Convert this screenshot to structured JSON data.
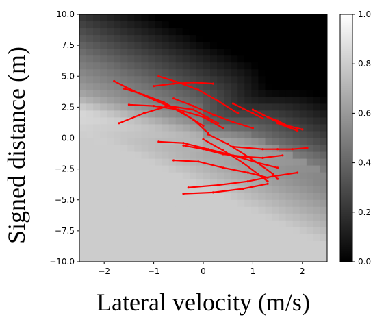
{
  "chart_data": {
    "type": "heatmap",
    "title": "",
    "xlabel": "Lateral velocity (m/s)",
    "ylabel": "Signed distance (m)",
    "xlim": [
      -2.5,
      2.5
    ],
    "ylim": [
      -10.0,
      10.0
    ],
    "x_ticks": [
      -2,
      -1,
      0,
      1,
      2
    ],
    "x_tick_labels": [
      "−2",
      "−1",
      "0",
      "1",
      "2"
    ],
    "y_ticks": [
      10.0,
      7.5,
      5.0,
      2.5,
      0.0,
      -2.5,
      -5.0,
      -7.5,
      -10.0
    ],
    "y_tick_labels": [
      "10.0",
      "7.5",
      "5.0",
      "2.5",
      "0.0",
      "−2.5",
      "−5.0",
      "−7.5",
      "−10.0"
    ],
    "colormap": "gray",
    "colorbar": {
      "range": [
        0.0,
        1.0
      ],
      "ticks": [
        1.0,
        0.8,
        0.6,
        0.4,
        0.2,
        0.0
      ],
      "tick_labels": [
        "1.0",
        "0.8",
        "0.6",
        "0.4",
        "0.2",
        "0.0"
      ]
    },
    "heatmap_grid": {
      "nx": 36,
      "ny": 36
    },
    "overlay_series": {
      "name": "",
      "color": "#ff0000",
      "type": "scatter",
      "trajectories": [
        {
          "x": [
            -1.8,
            -1.4,
            -1.0,
            -0.6,
            -0.2,
            0.1
          ],
          "y": [
            4.6,
            3.8,
            3.1,
            2.4,
            1.5,
            0.4
          ]
        },
        {
          "x": [
            -1.6,
            -1.2,
            -0.8,
            -0.4,
            0.0
          ],
          "y": [
            4.0,
            3.5,
            2.9,
            2.0,
            1.0
          ]
        },
        {
          "x": [
            -1.5,
            -1.0,
            -0.5,
            0.0,
            0.4
          ],
          "y": [
            2.7,
            2.6,
            2.3,
            1.7,
            0.8
          ]
        },
        {
          "x": [
            -1.7,
            -1.2,
            -0.7,
            -0.2,
            0.3
          ],
          "y": [
            1.2,
            2.0,
            2.6,
            2.3,
            1.2
          ]
        },
        {
          "x": [
            -1.0,
            -0.6,
            -0.2,
            0.2
          ],
          "y": [
            4.2,
            4.4,
            4.5,
            4.4
          ]
        },
        {
          "x": [
            -0.9,
            -0.5,
            -0.1,
            0.3,
            0.7
          ],
          "y": [
            5.0,
            4.5,
            3.9,
            3.0,
            2.0
          ]
        },
        {
          "x": [
            -0.6,
            -0.2,
            0.2,
            0.6,
            1.0
          ],
          "y": [
            3.2,
            2.6,
            1.9,
            1.3,
            0.8
          ]
        },
        {
          "x": [
            -0.4,
            0.0,
            0.4,
            0.8,
            1.2,
            1.6
          ],
          "y": [
            -0.6,
            -0.9,
            -1.3,
            -1.5,
            -1.6,
            -1.4
          ]
        },
        {
          "x": [
            -0.9,
            -0.4,
            0.1,
            0.6,
            1.1,
            1.5
          ],
          "y": [
            -0.3,
            -0.4,
            -0.9,
            -1.4,
            -2.0,
            -2.4
          ]
        },
        {
          "x": [
            0.1,
            0.5,
            0.9,
            1.2,
            1.4,
            1.5
          ],
          "y": [
            0.3,
            -0.5,
            -1.5,
            -2.3,
            -2.9,
            -3.3
          ]
        },
        {
          "x": [
            0.0,
            0.4,
            0.8,
            1.1,
            1.3
          ],
          "y": [
            -0.1,
            -1.0,
            -2.0,
            -2.9,
            -3.5
          ]
        },
        {
          "x": [
            -0.4,
            0.2,
            0.8,
            1.3
          ],
          "y": [
            -4.5,
            -4.4,
            -4.1,
            -3.7
          ]
        },
        {
          "x": [
            -0.3,
            0.3,
            0.9,
            1.4,
            1.9
          ],
          "y": [
            -4.0,
            -3.8,
            -3.5,
            -3.1,
            -2.8
          ]
        },
        {
          "x": [
            -0.6,
            -0.1,
            0.4,
            0.9,
            1.3
          ],
          "y": [
            -1.8,
            -1.9,
            -2.4,
            -2.8,
            -3.2
          ]
        },
        {
          "x": [
            0.6,
            0.9,
            1.2,
            1.5,
            1.8,
            2.1
          ],
          "y": [
            -0.7,
            -0.8,
            -0.9,
            -0.9,
            -0.9,
            -0.8
          ]
        },
        {
          "x": [
            0.6,
            0.8,
            1.0,
            1.2
          ],
          "y": [
            2.8,
            2.4,
            2.0,
            1.6
          ]
        },
        {
          "x": [
            1.0,
            1.2,
            1.4,
            1.6
          ],
          "y": [
            2.3,
            1.9,
            1.5,
            1.1
          ]
        },
        {
          "x": [
            1.3,
            1.5,
            1.7,
            1.9,
            2.0
          ],
          "y": [
            1.7,
            1.4,
            1.0,
            0.8,
            0.7
          ]
        },
        {
          "x": [
            1.5,
            1.7,
            1.9
          ],
          "y": [
            1.2,
            0.9,
            0.6
          ]
        }
      ]
    }
  }
}
